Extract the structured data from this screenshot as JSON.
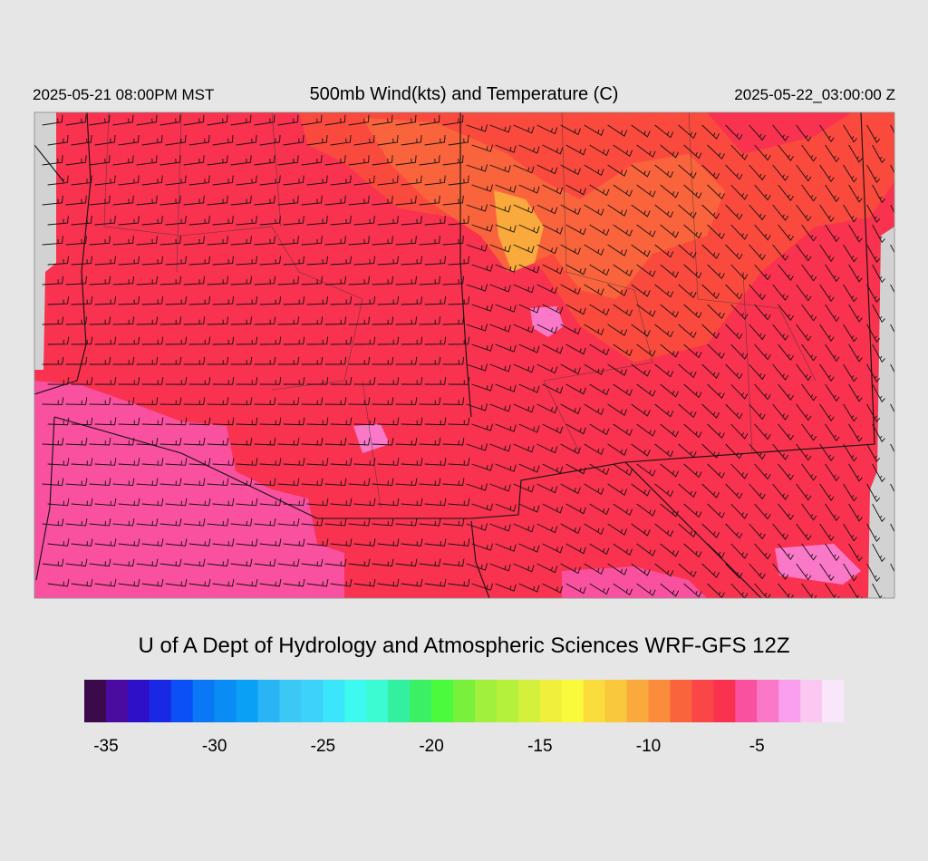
{
  "header": {
    "valid_local": "2025-05-21 08:00PM MST",
    "title": "500mb Wind(kts) and Temperature (C)",
    "valid_utc": "2025-05-22_03:00:00 Z"
  },
  "footer": {
    "credit": "U of A Dept of Hydrology and Atmospheric Sciences WRF-GFS 12Z"
  },
  "colorbar": {
    "lim": [
      -36,
      -1
    ],
    "ticks": [
      -35,
      -30,
      -25,
      -20,
      -15,
      -10,
      -5
    ],
    "colors": [
      "#3a0a4a",
      "#4b0aa0",
      "#2d10c8",
      "#1a28e6",
      "#0a50f5",
      "#0a78f5",
      "#0a8cf5",
      "#0aa0f5",
      "#28b4f5",
      "#3cc8f5",
      "#3cd2fa",
      "#3ce6fa",
      "#3cfaf0",
      "#3cfad2",
      "#32f0a0",
      "#3cf064",
      "#4bfa3c",
      "#78f03c",
      "#a0f03c",
      "#b4f03c",
      "#d2f03c",
      "#f0f03c",
      "#fafa3c",
      "#fadc3c",
      "#fac83c",
      "#faaa3c",
      "#fa8c3c",
      "#fa643c",
      "#fa4646",
      "#fa3250",
      "#fa50a0",
      "#fa78c8",
      "#fa9ef0",
      "#fac8f0",
      "#fae6fa"
    ]
  }
}
